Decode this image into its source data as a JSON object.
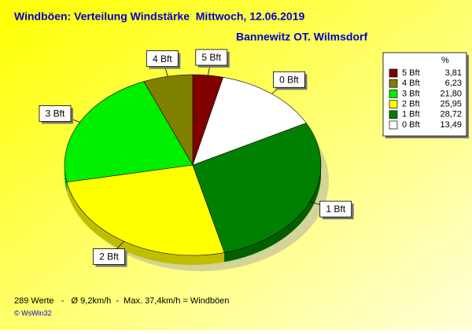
{
  "chart_data": {
    "type": "pie",
    "title": "Windböen: Verteilung Windstärke  Mittwoch, 12.06.2019",
    "subtitle": "Bannewitz OT. Wilmsdorf",
    "legend_header": "%",
    "categories": [
      "5 Bft",
      "4 Bft",
      "3 Bft",
      "2 Bft",
      "1 Bft",
      "0 Bft"
    ],
    "values": [
      3.81,
      6.23,
      21.8,
      25.95,
      28.72,
      13.49
    ],
    "value_labels": [
      "3,81",
      "6,23",
      "21,80",
      "25,95",
      "28,72",
      "13,49"
    ],
    "colors": [
      "#800000",
      "#808000",
      "#00ee00",
      "#ffff00",
      "#008000",
      "#ffffff"
    ],
    "legend_position": "upper right",
    "footer": "289 Werte   -   Ø 9,2km/h  -  Max. 37,4km/h = Windböen",
    "credit": "© WsWin32"
  }
}
